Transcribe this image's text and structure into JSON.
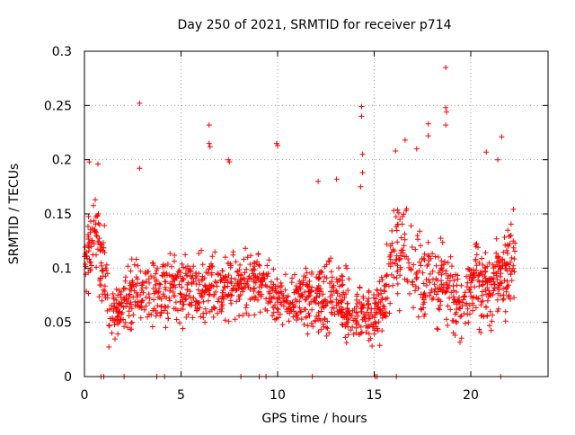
{
  "chart_data": {
    "type": "scatter",
    "title": "Day 250 of 2021, SRMTID for receiver p714",
    "xlabel": "GPS time / hours",
    "ylabel": "SRMTID / TECUs",
    "xlim": [
      0,
      24
    ],
    "ylim": [
      0,
      0.3
    ],
    "xticks": [
      0,
      5,
      10,
      15,
      20
    ],
    "xtick_labels": [
      "0",
      "5",
      "10",
      "15",
      "20"
    ],
    "yticks": [
      0,
      0.05,
      0.1,
      0.15,
      0.2,
      0.25,
      0.3
    ],
    "ytick_labels": [
      "0",
      "0.05",
      "0.1",
      "0.15",
      "0.2",
      "0.25",
      "0.3"
    ],
    "grid": true,
    "marker": "+",
    "colors": {
      "series": "#ff0000",
      "grid": "#a0a0a0",
      "axis": "#000000"
    },
    "series": [
      {
        "name": "SRMTID",
        "generation": "Dense cloud of roughly 1600 '+' markers, approximated as a seeded pseudo-random spread around a time-varying median envelope (too dense to read individually).",
        "envelope": {
          "time_hours": [
            0.0,
            0.5,
            1.0,
            1.3,
            2.0,
            3.0,
            4.0,
            5.0,
            6.0,
            7.0,
            8.0,
            9.0,
            10.0,
            11.0,
            12.0,
            13.0,
            14.0,
            15.0,
            15.5,
            16.0,
            16.5,
            17.0,
            17.5,
            18.0,
            19.0,
            19.5,
            20.0,
            21.0,
            22.0,
            22.3
          ],
          "median": [
            0.11,
            0.13,
            0.1,
            0.05,
            0.07,
            0.08,
            0.08,
            0.08,
            0.08,
            0.08,
            0.085,
            0.09,
            0.07,
            0.07,
            0.07,
            0.075,
            0.06,
            0.055,
            0.07,
            0.11,
            0.12,
            0.1,
            0.09,
            0.09,
            0.08,
            0.06,
            0.09,
            0.08,
            0.1,
            0.11
          ],
          "spread": [
            0.04,
            0.04,
            0.04,
            0.025,
            0.03,
            0.035,
            0.035,
            0.035,
            0.035,
            0.035,
            0.035,
            0.035,
            0.03,
            0.03,
            0.035,
            0.035,
            0.03,
            0.03,
            0.03,
            0.045,
            0.045,
            0.045,
            0.04,
            0.04,
            0.04,
            0.03,
            0.04,
            0.04,
            0.045,
            0.045
          ]
        },
        "extra_points": [
          {
            "x": 2.85,
            "y": 0.252
          },
          {
            "x": 2.85,
            "y": 0.192
          },
          {
            "x": 6.45,
            "y": 0.232
          },
          {
            "x": 6.45,
            "y": 0.215
          },
          {
            "x": 6.5,
            "y": 0.212
          },
          {
            "x": 9.95,
            "y": 0.215
          },
          {
            "x": 10.0,
            "y": 0.213
          },
          {
            "x": 14.35,
            "y": 0.249
          },
          {
            "x": 14.35,
            "y": 0.24
          },
          {
            "x": 14.4,
            "y": 0.205
          },
          {
            "x": 14.4,
            "y": 0.188
          },
          {
            "x": 14.3,
            "y": 0.175
          },
          {
            "x": 17.2,
            "y": 0.21
          },
          {
            "x": 17.8,
            "y": 0.233
          },
          {
            "x": 17.8,
            "y": 0.222
          },
          {
            "x": 18.7,
            "y": 0.285
          },
          {
            "x": 18.7,
            "y": 0.248
          },
          {
            "x": 18.75,
            "y": 0.244
          },
          {
            "x": 18.7,
            "y": 0.232
          },
          {
            "x": 21.6,
            "y": 0.221
          },
          {
            "x": 21.4,
            "y": 0.2
          },
          {
            "x": 20.8,
            "y": 0.207
          },
          {
            "x": 0.25,
            "y": 0.198
          },
          {
            "x": 0.7,
            "y": 0.196
          },
          {
            "x": 7.45,
            "y": 0.2
          },
          {
            "x": 7.5,
            "y": 0.198
          },
          {
            "x": 12.1,
            "y": 0.18
          },
          {
            "x": 13.05,
            "y": 0.182
          },
          {
            "x": 16.6,
            "y": 0.218
          },
          {
            "x": 16.1,
            "y": 0.208
          }
        ],
        "zero_markers_x": [
          0.85,
          1.0,
          2.05,
          3.75,
          4.15,
          8.1,
          9.05,
          9.4,
          11.8,
          15.05,
          15.15,
          16.15,
          21.55
        ]
      }
    ]
  }
}
